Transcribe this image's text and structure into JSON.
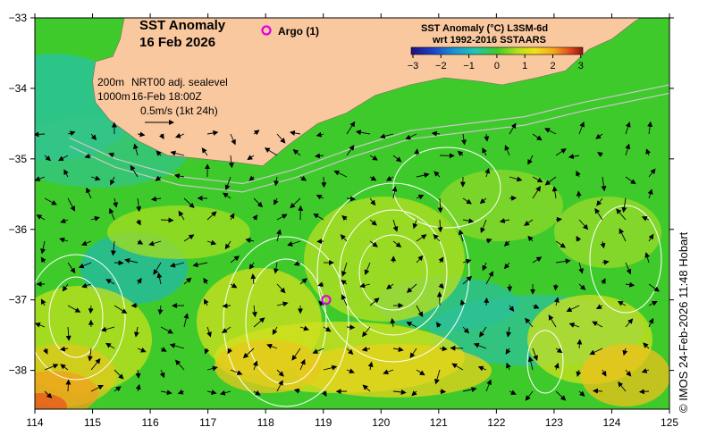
{
  "title": {
    "line1": "SST Anomaly",
    "line2": "16 Feb 2026"
  },
  "argo": {
    "legend_label": "Argo (1)",
    "floats": [
      {
        "lon": 119.05,
        "lat": -37.0
      }
    ],
    "color": "#e000e0"
  },
  "colorbar": {
    "title_line1": "SST Anomaly (°C) L3SM-6d",
    "title_line2": "wrt 1992-2016 SSTAARS",
    "ticks": [
      "−3",
      "−2",
      "−1",
      "0",
      "1",
      "2",
      "3"
    ]
  },
  "annotations": {
    "depth_200": "200m",
    "depth_1000": "1000m",
    "source": "NRT00 adj. sealevel",
    "time": "16-Feb 18:00Z",
    "scale": "0.5m/s (1kt 24h)"
  },
  "axes": {
    "x_ticks": [
      "114",
      "115",
      "116",
      "117",
      "118",
      "119",
      "120",
      "121",
      "122",
      "123",
      "124",
      "125"
    ],
    "y_ticks": [
      "−33",
      "−34",
      "−35",
      "−36",
      "−37",
      "−38"
    ],
    "lon_range": [
      114,
      125
    ],
    "lat_range": [
      -38.55,
      -33
    ]
  },
  "credit": "© IMOS 24-Feb-2026 11:48 Hobart",
  "colors": {
    "land": "#f9c89f",
    "sea_base": "#3fca2c",
    "contour": "#ffffff",
    "isobath": "#c8c8c8",
    "arrow": "#000000"
  }
}
